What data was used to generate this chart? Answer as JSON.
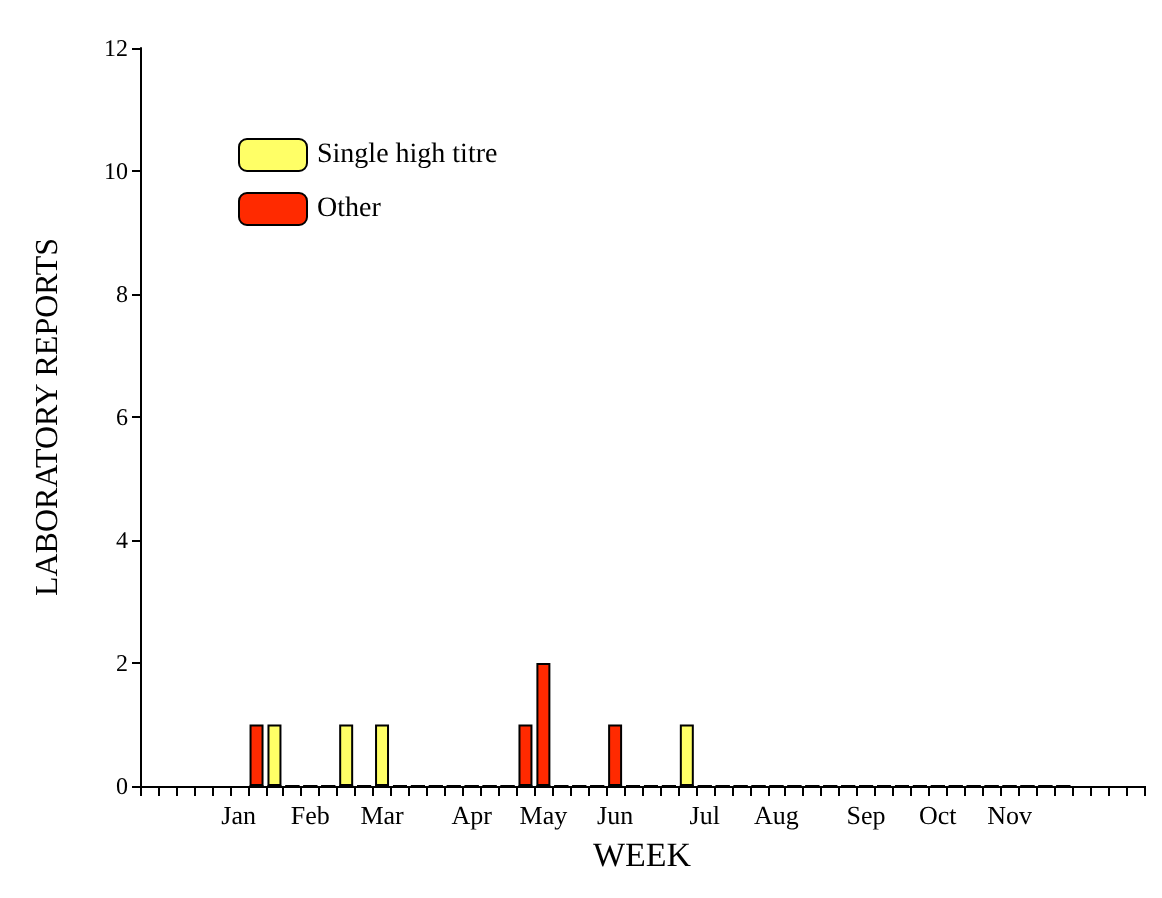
{
  "chart_data": {
    "type": "bar",
    "xlabel": "WEEK",
    "ylabel": "LABORATORY REPORTS",
    "categories": [
      null,
      null,
      null,
      null,
      null,
      "Jan",
      null,
      null,
      null,
      "Feb",
      null,
      null,
      null,
      "Mar",
      null,
      null,
      null,
      null,
      "Apr",
      null,
      null,
      null,
      "May",
      null,
      null,
      null,
      "Jun",
      null,
      null,
      null,
      null,
      "Jul",
      null,
      null,
      null,
      "Aug",
      null,
      null,
      null,
      null,
      "Sep",
      null,
      null,
      null,
      "Oct",
      null,
      null,
      null,
      "Nov",
      null,
      null,
      null,
      null,
      null,
      null,
      null
    ],
    "series": [
      {
        "name": "Single high titre",
        "color": "#ffff66",
        "values": [
          null,
          null,
          null,
          null,
          null,
          null,
          0,
          1,
          0,
          0,
          0,
          1,
          0,
          1,
          0,
          0,
          0,
          0,
          0,
          0,
          0,
          0,
          0,
          0,
          0,
          0,
          0,
          0,
          0,
          0,
          1,
          0,
          0,
          0,
          0,
          0,
          0,
          0,
          0,
          0,
          0,
          0,
          0,
          0,
          0,
          0,
          0,
          0,
          0,
          0,
          0,
          0,
          null,
          null,
          null,
          null
        ]
      },
      {
        "name": "Other",
        "color": "#ff2a00",
        "values": [
          null,
          null,
          null,
          null,
          null,
          null,
          1,
          0,
          0,
          0,
          0,
          0,
          0,
          0,
          0,
          0,
          0,
          0,
          0,
          0,
          0,
          1,
          2,
          0,
          0,
          0,
          1,
          0,
          0,
          0,
          0,
          0,
          0,
          0,
          0,
          0,
          0,
          0,
          0,
          0,
          0,
          0,
          0,
          0,
          0,
          0,
          0,
          0,
          0,
          0,
          0,
          0,
          null,
          null,
          null,
          null
        ]
      }
    ],
    "ylim": [
      0,
      12
    ],
    "yticks": [
      0,
      2,
      4,
      6,
      8,
      10,
      12
    ],
    "grid": false,
    "legend": "top left"
  }
}
